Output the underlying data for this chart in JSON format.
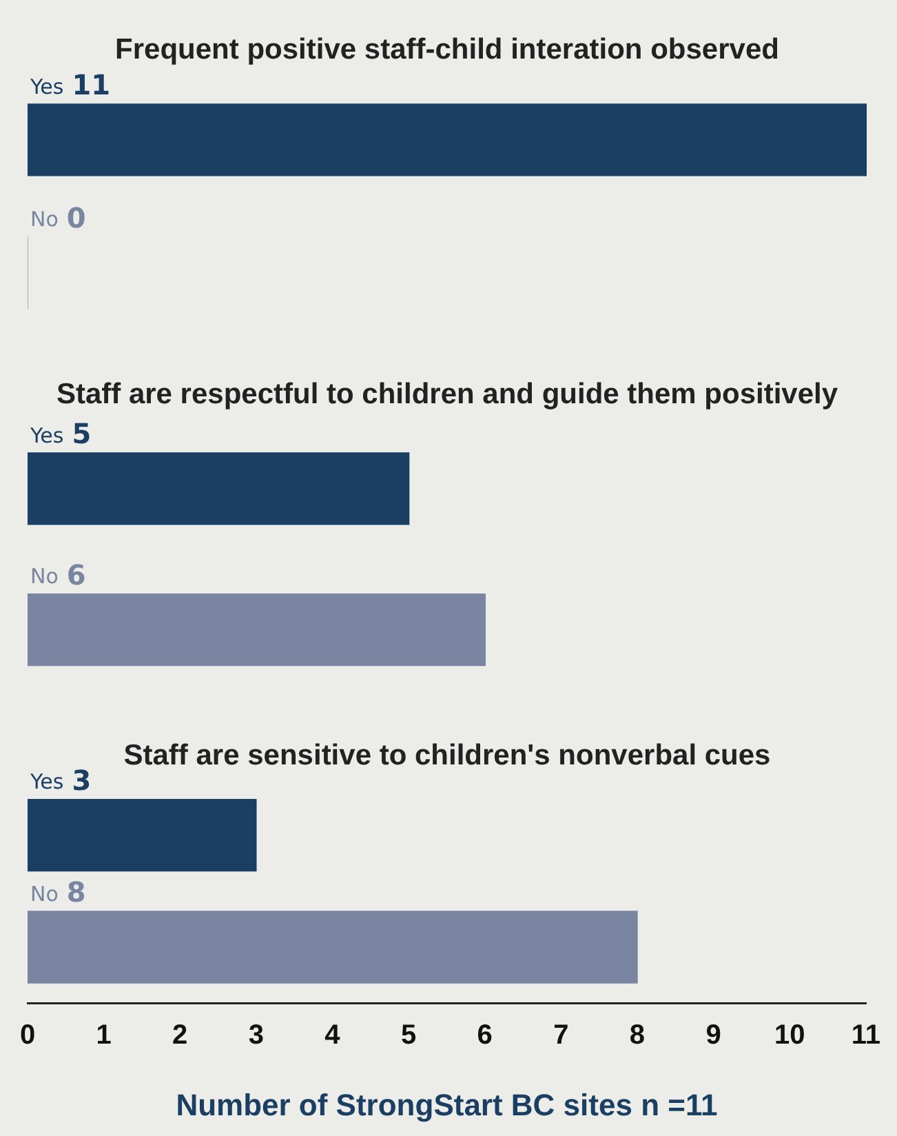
{
  "chart_data": [
    {
      "type": "bar",
      "orientation": "horizontal",
      "title": "Frequent positive staff-child interation observed",
      "categories": [
        "Yes",
        "No"
      ],
      "values": [
        11,
        0
      ],
      "colors": [
        "#1b3f63",
        "#7a86a1"
      ],
      "data_labels": true,
      "xlim": [
        0,
        11
      ],
      "tick_labels": false
    },
    {
      "type": "bar",
      "orientation": "horizontal",
      "title": "Staff are respectful to children and guide them positively",
      "categories": [
        "Yes",
        "No"
      ],
      "values": [
        5,
        6
      ],
      "colors": [
        "#1b3f63",
        "#7a86a1"
      ],
      "data_labels": true,
      "xlim": [
        0,
        11
      ],
      "tick_labels": false
    },
    {
      "type": "bar",
      "orientation": "horizontal",
      "title": "Staff are sensitive to children's nonverbal cues",
      "categories": [
        "Yes",
        "No"
      ],
      "values": [
        3,
        8
      ],
      "colors": [
        "#1b3f63",
        "#7a86a1"
      ],
      "data_labels": true,
      "xlim": [
        0,
        11
      ],
      "xticks": [
        0,
        1,
        2,
        3,
        4,
        5,
        6,
        7,
        8,
        9,
        10,
        11
      ],
      "tick_labels": "x",
      "xlabel": "Number of StrongStart BC sites n =11"
    }
  ]
}
